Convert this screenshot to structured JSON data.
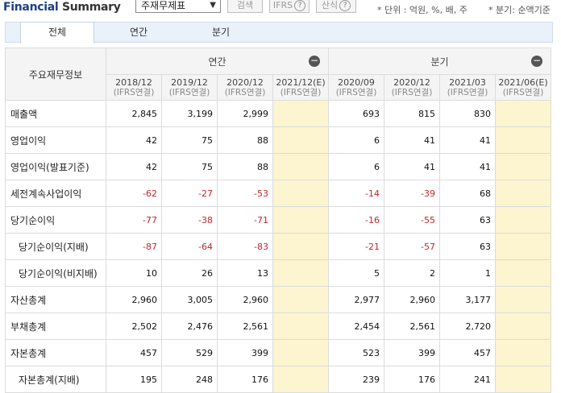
{
  "header": {
    "title_part1": "Financial",
    "title_part2": "Summary",
    "select_value": "주재무제표",
    "search_button": "검색",
    "ifrs_button": "IFRS",
    "calc_button": "산식",
    "unit_note": "* 단위 : 억원, %, 배, 주",
    "quarter_note": "* 분기: 순액기준"
  },
  "tabs": [
    "전체",
    "연간",
    "분기"
  ],
  "table": {
    "corner": "주요재무정보",
    "group_annual": "연간",
    "group_quarter": "분기",
    "columns": [
      {
        "period": "2018/12",
        "basis": "(IFRS연결)"
      },
      {
        "period": "2019/12",
        "basis": "(IFRS연결)"
      },
      {
        "period": "2020/12",
        "basis": "(IFRS연결)"
      },
      {
        "period": "2021/12(E)",
        "basis": "(IFRS연결)"
      },
      {
        "period": "2020/09",
        "basis": "(IFRS연결)"
      },
      {
        "period": "2020/12",
        "basis": "(IFRS연결)"
      },
      {
        "period": "2021/03",
        "basis": "(IFRS연결)"
      },
      {
        "period": "2021/06(E)",
        "basis": "(IFRS연결)"
      }
    ],
    "rows": [
      {
        "label": "매출액",
        "indent": false,
        "values": [
          "2,845",
          "3,199",
          "2,999",
          "",
          "693",
          "815",
          "830",
          ""
        ]
      },
      {
        "label": "영업이익",
        "indent": false,
        "values": [
          "42",
          "75",
          "88",
          "",
          "6",
          "41",
          "41",
          ""
        ]
      },
      {
        "label": "영업이익(발표기준)",
        "indent": false,
        "values": [
          "42",
          "75",
          "88",
          "",
          "6",
          "41",
          "41",
          ""
        ]
      },
      {
        "label": "세전계속사업이익",
        "indent": false,
        "values": [
          "-62",
          "-27",
          "-53",
          "",
          "-14",
          "-39",
          "68",
          ""
        ]
      },
      {
        "label": "당기순이익",
        "indent": false,
        "values": [
          "-77",
          "-38",
          "-71",
          "",
          "-16",
          "-55",
          "63",
          ""
        ]
      },
      {
        "label": "당기순이익(지배)",
        "indent": true,
        "values": [
          "-87",
          "-64",
          "-83",
          "",
          "-21",
          "-57",
          "63",
          ""
        ]
      },
      {
        "label": "당기순이익(비지배)",
        "indent": true,
        "values": [
          "10",
          "26",
          "13",
          "",
          "5",
          "2",
          "1",
          ""
        ]
      },
      {
        "label": "자산총계",
        "indent": false,
        "values": [
          "2,960",
          "3,005",
          "2,960",
          "",
          "2,977",
          "2,960",
          "3,177",
          ""
        ]
      },
      {
        "label": "부채총계",
        "indent": false,
        "values": [
          "2,502",
          "2,476",
          "2,561",
          "",
          "2,454",
          "2,561",
          "2,720",
          ""
        ]
      },
      {
        "label": "자본총계",
        "indent": false,
        "values": [
          "457",
          "529",
          "399",
          "",
          "523",
          "399",
          "457",
          ""
        ]
      },
      {
        "label": "자본총계(지배)",
        "indent": true,
        "values": [
          "195",
          "248",
          "176",
          "",
          "239",
          "176",
          "241",
          ""
        ]
      }
    ]
  },
  "colors": {
    "estimate_bg": "#fcf5cf",
    "negative": "#c1272d",
    "title": "#1d3f87"
  }
}
